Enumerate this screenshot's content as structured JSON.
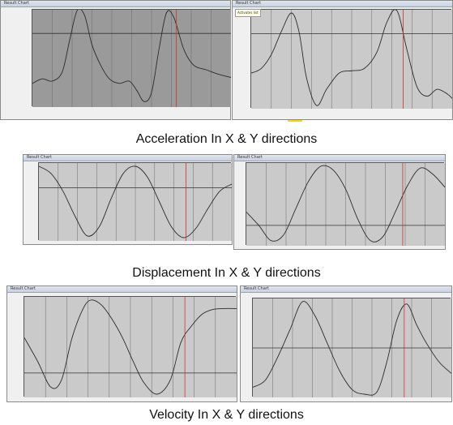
{
  "captions": {
    "acceleration": "Acceleration In X & Y  directions",
    "displacement": "Displacement In X & Y  directions",
    "velocity": "Velocity In X & Y  directions"
  },
  "window_title": "Result Chart",
  "tooltip": "Activates list",
  "colors": {
    "plot_dark": "#9a9a9a",
    "plot_light": "#cacaca",
    "curve": "#2b2b2b",
    "marker": "#d03030",
    "grid": "#6b6b6b",
    "hline": "#333333",
    "accent": "#ffd400"
  },
  "chart_data": [
    {
      "id": "accel-x",
      "type": "line",
      "group": "acceleration",
      "axis": "X",
      "plot_bg": "dark",
      "x": [
        0,
        8,
        16,
        24,
        30,
        36,
        42,
        48,
        55,
        62,
        70,
        78,
        84,
        90,
        96,
        102,
        108,
        114,
        122,
        130,
        140,
        150,
        160
      ],
      "values": [
        -0.55,
        -0.45,
        -0.5,
        -0.3,
        0.4,
        1.05,
        0.95,
        0.3,
        -0.15,
        -0.45,
        -0.55,
        -0.5,
        -0.7,
        -0.95,
        -0.75,
        0.2,
        1.0,
        0.9,
        0.2,
        -0.15,
        -0.25,
        -0.35,
        -0.42
      ],
      "xlim": [
        0,
        160
      ],
      "ylim": [
        -1,
        1
      ],
      "hline": 0.55,
      "marker_x": 116
    },
    {
      "id": "accel-y",
      "type": "line",
      "group": "acceleration",
      "axis": "Y",
      "plot_bg": "light",
      "x": [
        0,
        8,
        16,
        24,
        32,
        38,
        44,
        52,
        60,
        70,
        80,
        90,
        100,
        108,
        116,
        124,
        132,
        140,
        148,
        156,
        160
      ],
      "values": [
        -0.3,
        -0.2,
        0.1,
        0.6,
        1.0,
        0.6,
        -0.4,
        -1.0,
        -0.65,
        -0.3,
        -0.25,
        -0.2,
        0.15,
        0.8,
        1.05,
        0.2,
        -0.6,
        -0.8,
        -0.65,
        -0.75,
        -0.85
      ],
      "xlim": [
        0,
        160
      ],
      "ylim": [
        -1,
        1
      ],
      "hline": 0.55,
      "marker_x": 121
    },
    {
      "id": "disp-x",
      "type": "line",
      "group": "displacement",
      "axis": "X",
      "plot_bg": "light",
      "x": [
        0,
        10,
        20,
        30,
        40,
        50,
        60,
        70,
        80,
        90,
        100,
        110,
        120,
        130,
        140,
        150,
        160
      ],
      "values": [
        1.0,
        0.8,
        0.3,
        -0.4,
        -0.95,
        -0.7,
        0.1,
        0.8,
        1.0,
        0.7,
        0.0,
        -0.7,
        -1.0,
        -0.75,
        -0.2,
        0.3,
        0.5
      ],
      "xlim": [
        0,
        160
      ],
      "ylim": [
        -1,
        1
      ],
      "hline": 0.4,
      "marker_x": 122
    },
    {
      "id": "disp-y",
      "type": "line",
      "group": "displacement",
      "axis": "Y",
      "plot_bg": "light",
      "x": [
        0,
        10,
        20,
        30,
        40,
        50,
        60,
        70,
        80,
        90,
        100,
        110,
        120,
        130,
        140,
        150,
        160
      ],
      "values": [
        -0.2,
        -0.55,
        -0.95,
        -0.8,
        -0.1,
        0.6,
        1.0,
        0.9,
        0.4,
        -0.4,
        -0.95,
        -0.85,
        -0.2,
        0.5,
        0.95,
        0.8,
        0.45
      ],
      "xlim": [
        0,
        160
      ],
      "ylim": [
        -1,
        1
      ],
      "hline": -0.55,
      "marker_x": 126
    },
    {
      "id": "vel-x",
      "type": "line",
      "group": "velocity",
      "axis": "X",
      "plot_bg": "light",
      "x": [
        0,
        10,
        20,
        28,
        36,
        44,
        50,
        58,
        66,
        74,
        82,
        90,
        100,
        110,
        118,
        126,
        134,
        142,
        150,
        160
      ],
      "values": [
        0.2,
        -0.3,
        -0.85,
        -0.7,
        0.2,
        0.8,
        1.0,
        0.9,
        0.6,
        0.2,
        -0.3,
        -0.75,
        -1.0,
        -0.7,
        0.1,
        0.45,
        0.7,
        0.8,
        0.82,
        0.82
      ],
      "xlim": [
        0,
        160
      ],
      "ylim": [
        -1,
        1
      ],
      "hline": -0.55,
      "marker_x": 121
    },
    {
      "id": "vel-y",
      "type": "line",
      "group": "velocity",
      "axis": "Y",
      "plot_bg": "light",
      "x": [
        0,
        10,
        20,
        30,
        40,
        50,
        60,
        70,
        80,
        90,
        100,
        108,
        116,
        124,
        132,
        140,
        150,
        160
      ],
      "values": [
        -0.85,
        -0.7,
        -0.2,
        0.4,
        1.0,
        0.7,
        0.1,
        -0.5,
        -0.9,
        -1.0,
        -0.95,
        -0.3,
        0.6,
        0.95,
        0.5,
        0.1,
        -0.3,
        -0.55
      ],
      "xlim": [
        0,
        160
      ],
      "ylim": [
        -1,
        1
      ],
      "hline": 0.0,
      "marker_x": 122
    }
  ]
}
